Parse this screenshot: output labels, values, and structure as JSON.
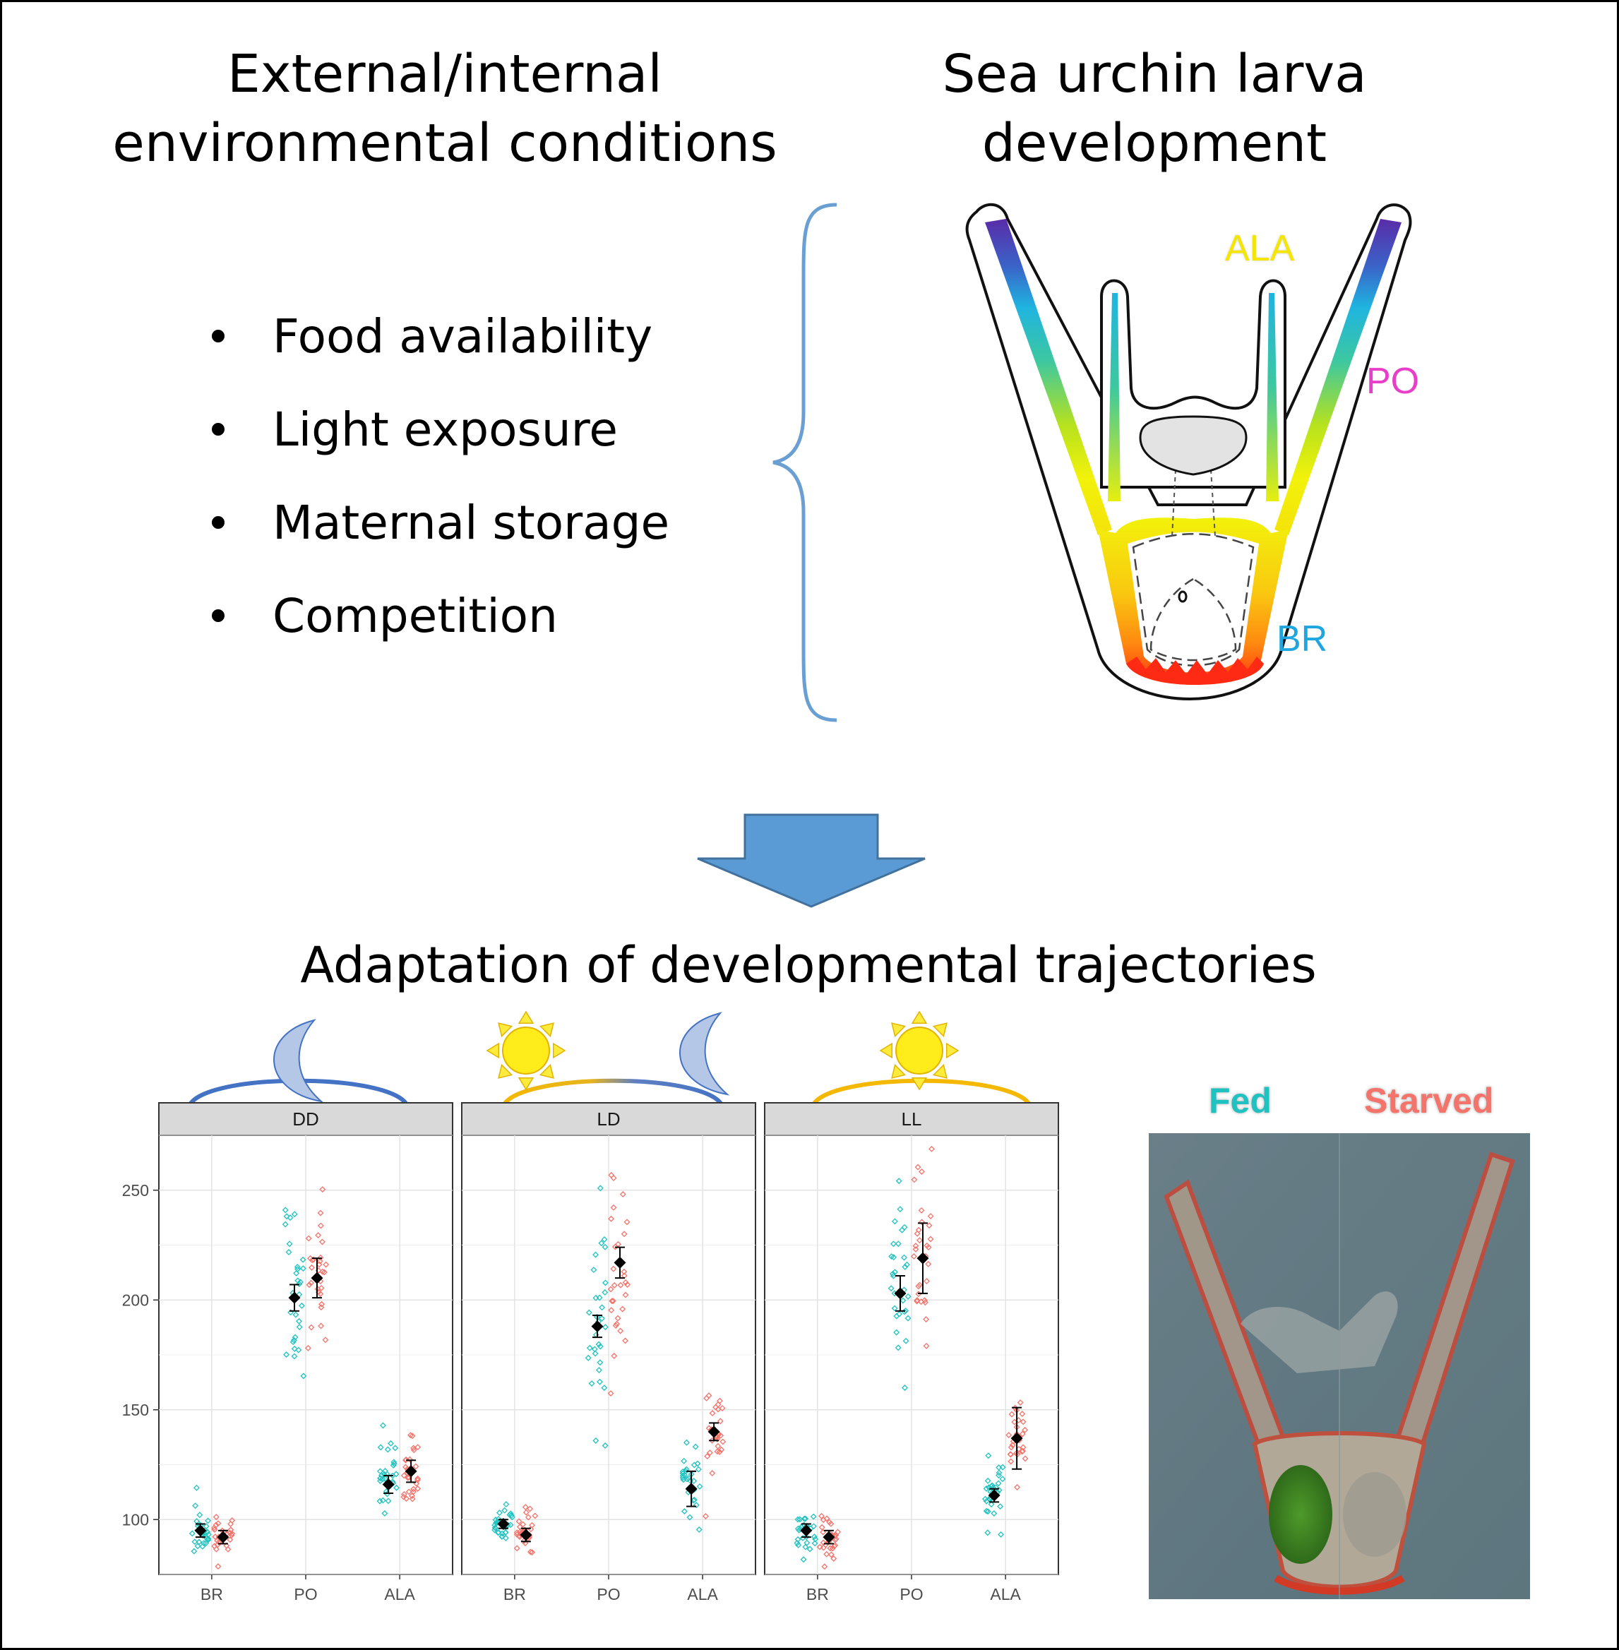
{
  "left_heading": {
    "line1": "External/internal",
    "line2": "environmental conditions"
  },
  "right_heading": {
    "line1": "Sea urchin larva",
    "line2": "development"
  },
  "conditions": [
    "Food availability",
    "Light exposure",
    "Maternal storage",
    "Competition"
  ],
  "larva_labels": {
    "ala": "ALA",
    "po": "PO",
    "br": "BR"
  },
  "bottom_heading": "Adaptation of developmental trajectories",
  "photo_labels": {
    "fed": "Fed",
    "starved": "Starved"
  },
  "colors": {
    "fed": "#1fc2c0",
    "starved": "#f4736b",
    "arrow": "#5b9bd5",
    "ala_label": "#f5e600",
    "po_label": "#e83ec8",
    "br_label": "#1fa6e0"
  },
  "chart_data": {
    "type": "scatter",
    "panels": [
      "DD",
      "LD",
      "LL"
    ],
    "categories": [
      "BR",
      "PO",
      "ALA"
    ],
    "y_ticks": [
      100,
      150,
      200,
      250
    ],
    "ylim": [
      75,
      275
    ],
    "series": [
      {
        "name": "Fed",
        "means": [
          [
            95,
            201,
            116
          ],
          [
            98,
            188,
            114
          ],
          [
            95,
            203,
            111
          ]
        ],
        "errors": [
          [
            3,
            6,
            4
          ],
          [
            2,
            5,
            8
          ],
          [
            3,
            8,
            3
          ]
        ]
      },
      {
        "name": "Starved",
        "means": [
          [
            92,
            210,
            122
          ],
          [
            93,
            217,
            140
          ],
          [
            92,
            219,
            137
          ]
        ],
        "errors": [
          [
            3,
            9,
            5
          ],
          [
            3,
            7,
            4
          ],
          [
            3,
            16,
            14
          ]
        ]
      }
    ]
  }
}
